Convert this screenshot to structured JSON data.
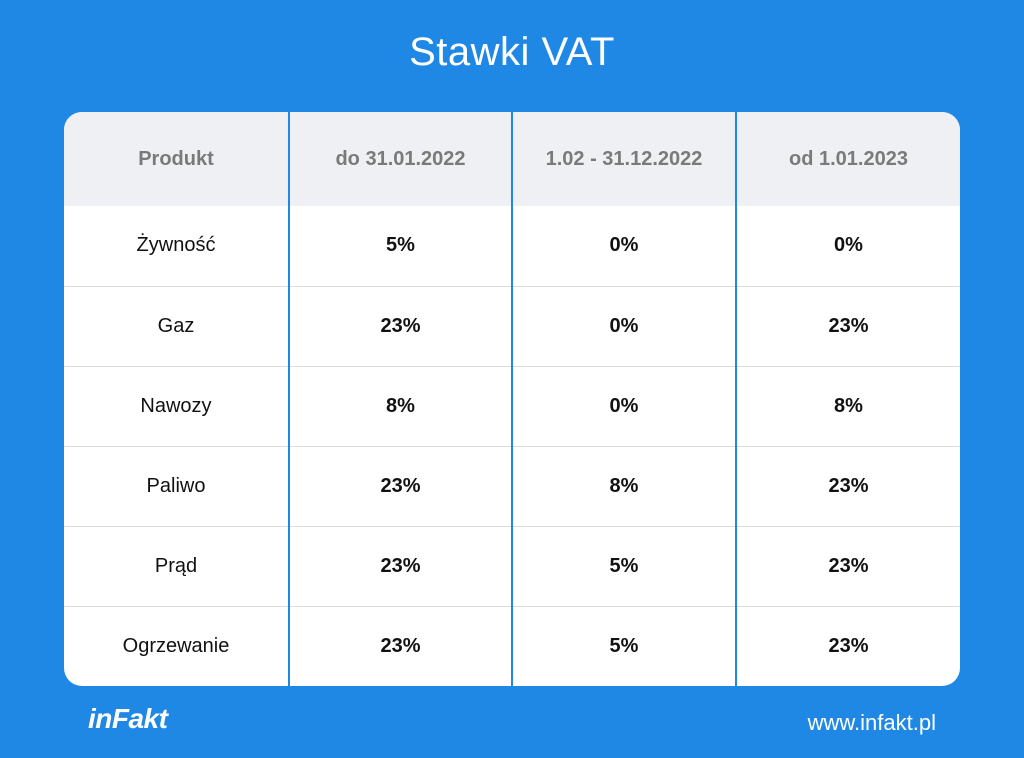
{
  "title": "Stawki VAT",
  "table": {
    "headers": [
      "Produkt",
      "do 31.01.2022",
      "1.02 - 31.12.2022",
      "od 1.01.2023"
    ],
    "rows": [
      [
        "Żywność",
        "5%",
        "0%",
        "0%"
      ],
      [
        "Gaz",
        "23%",
        "0%",
        "23%"
      ],
      [
        "Nawozy",
        "8%",
        "0%",
        "8%"
      ],
      [
        "Paliwo",
        "23%",
        "8%",
        "23%"
      ],
      [
        "Prąd",
        "23%",
        "5%",
        "23%"
      ],
      [
        "Ogrzewanie",
        "23%",
        "5%",
        "23%"
      ]
    ]
  },
  "footer": {
    "logo": "inFakt",
    "website": "www.infakt.pl"
  },
  "colors": {
    "background": "#1f88e5",
    "header_bg": "#eef0f3",
    "divider": "#1f88e5"
  }
}
